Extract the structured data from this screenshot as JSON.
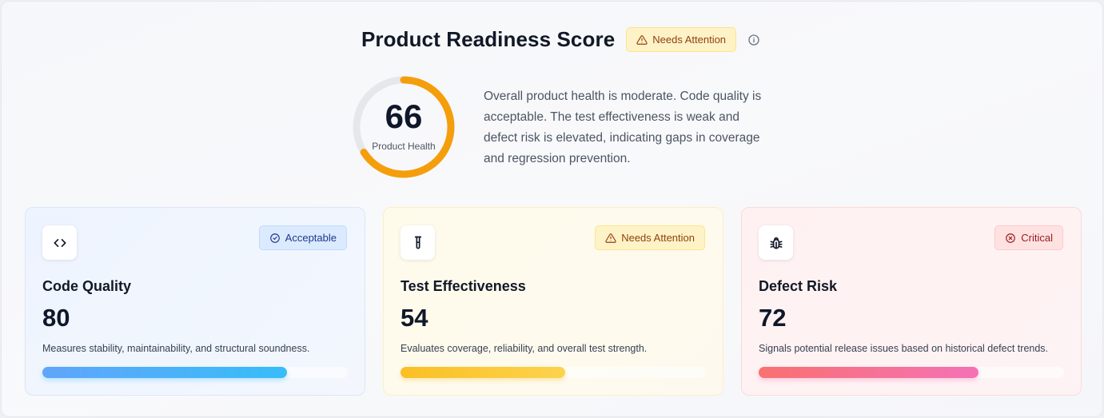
{
  "header": {
    "title": "Product Readiness Score",
    "status_badge": "Needs Attention"
  },
  "overall": {
    "score": "66",
    "score_value": 66,
    "label": "Product Health",
    "summary": "Overall product health is moderate. Code quality is acceptable. The test effectiveness is weak and defect risk is elevated, indicating gaps in coverage and regression prevention."
  },
  "cards": [
    {
      "title": "Code Quality",
      "score": "80",
      "progress": 80,
      "badge": "Acceptable",
      "description": "Measures stability, maintainability, and structural soundness.",
      "icon": "code-icon",
      "color": "#60a5fa"
    },
    {
      "title": "Test Effectiveness",
      "score": "54",
      "progress": 54,
      "badge": "Needs Attention",
      "description": "Evaluates coverage, reliability, and overall test strength.",
      "icon": "test-tube-icon",
      "color": "#fbbf24"
    },
    {
      "title": "Defect Risk",
      "score": "72",
      "progress": 72,
      "badge": "Critical",
      "description": "Signals potential release issues based on historical defect trends.",
      "icon": "bug-icon",
      "color": "#f87171"
    }
  ],
  "colors": {
    "gauge_track": "#e5e7eb",
    "gauge_fill": "#f59e0b"
  }
}
